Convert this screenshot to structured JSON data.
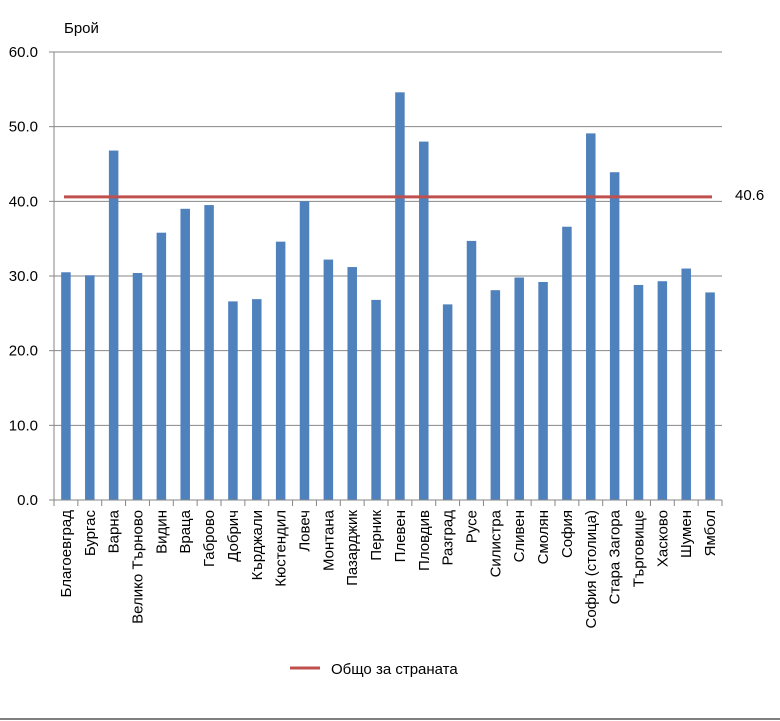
{
  "chart_data": {
    "type": "bar",
    "ylabel": "Брой",
    "ylim": [
      0,
      60
    ],
    "ytick_step": 10,
    "ytick_labels": [
      "0.0",
      "10.0",
      "20.0",
      "30.0",
      "40.0",
      "50.0",
      "60.0"
    ],
    "grid": true,
    "bar_color": "#4F81BD",
    "categories": [
      "Благоевград",
      "Бургас",
      "Варна",
      "Велико Търново",
      "Видин",
      "Враца",
      "Габрово",
      "Добрич",
      "Кърджали",
      "Кюстендил",
      "Ловеч",
      "Монтана",
      "Пазарджик",
      "Перник",
      "Плевен",
      "Пловдив",
      "Разград",
      "Русе",
      "Силистра",
      "Сливен",
      "Смолян",
      "София",
      "София (столица)",
      "Стара Загора",
      "Търговище",
      "Хасково",
      "Шумен",
      "Ямбол"
    ],
    "values": [
      30.5,
      30.1,
      46.8,
      30.4,
      35.8,
      39.0,
      39.5,
      26.6,
      26.9,
      34.6,
      40.0,
      32.2,
      31.2,
      26.8,
      54.6,
      48.0,
      26.2,
      34.7,
      28.1,
      29.8,
      29.2,
      36.6,
      49.1,
      43.9,
      28.8,
      29.3,
      31.0,
      27.8
    ],
    "reference_line": {
      "name": "Общо за страната",
      "value": 40.6,
      "label": "40.6",
      "color": "#C0504D"
    },
    "legend_position": "bottom"
  }
}
